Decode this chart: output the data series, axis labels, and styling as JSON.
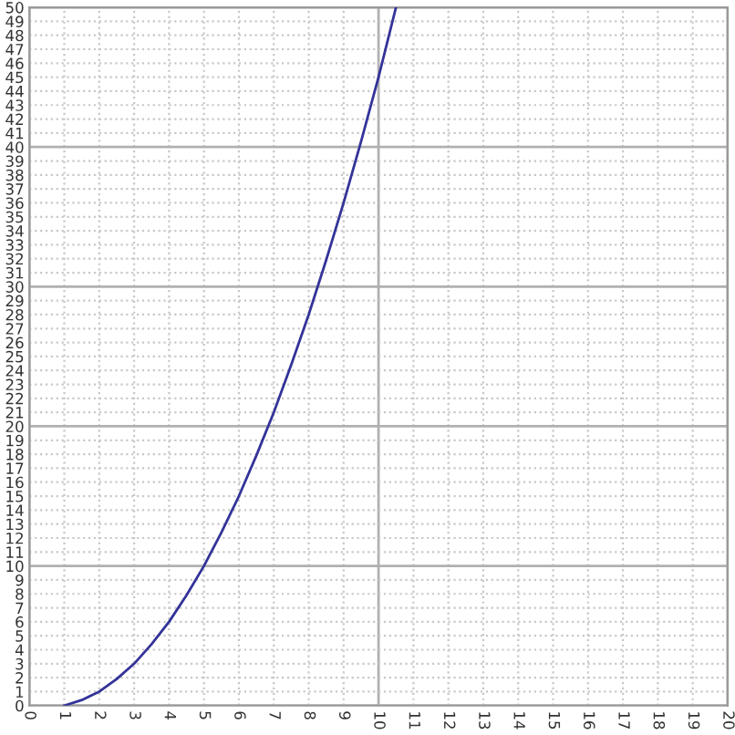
{
  "chart_data": {
    "type": "line",
    "x": [
      1,
      1.5,
      2,
      2.5,
      3,
      3.5,
      4,
      4.5,
      5,
      5.5,
      6,
      6.5,
      7,
      7.5,
      8,
      8.5,
      9,
      9.5,
      10,
      10.5
    ],
    "series": [
      {
        "color": "#333399",
        "values": [
          0,
          0.4,
          1,
          1.9,
          3,
          4.4,
          6,
          7.9,
          10,
          12.4,
          15,
          17.9,
          21,
          24.4,
          28,
          31.9,
          36,
          40.4,
          45,
          50
        ]
      }
    ],
    "xlim": [
      0,
      20
    ],
    "xticks": [
      0,
      1,
      2,
      3,
      4,
      5,
      6,
      7,
      8,
      9,
      10,
      11,
      12,
      13,
      14,
      15,
      16,
      17,
      18,
      19,
      20
    ],
    "ylim": [
      0,
      50
    ],
    "yticks": [
      0,
      1,
      2,
      3,
      4,
      5,
      6,
      7,
      8,
      9,
      10,
      11,
      12,
      13,
      14,
      15,
      16,
      17,
      18,
      19,
      20,
      21,
      22,
      23,
      24,
      25,
      26,
      27,
      28,
      29,
      30,
      31,
      32,
      33,
      34,
      35,
      36,
      37,
      38,
      39,
      40,
      41,
      42,
      43,
      44,
      45,
      46,
      47,
      48,
      49,
      50
    ],
    "grid": true,
    "marker": "none",
    "line_style": "solid"
  }
}
